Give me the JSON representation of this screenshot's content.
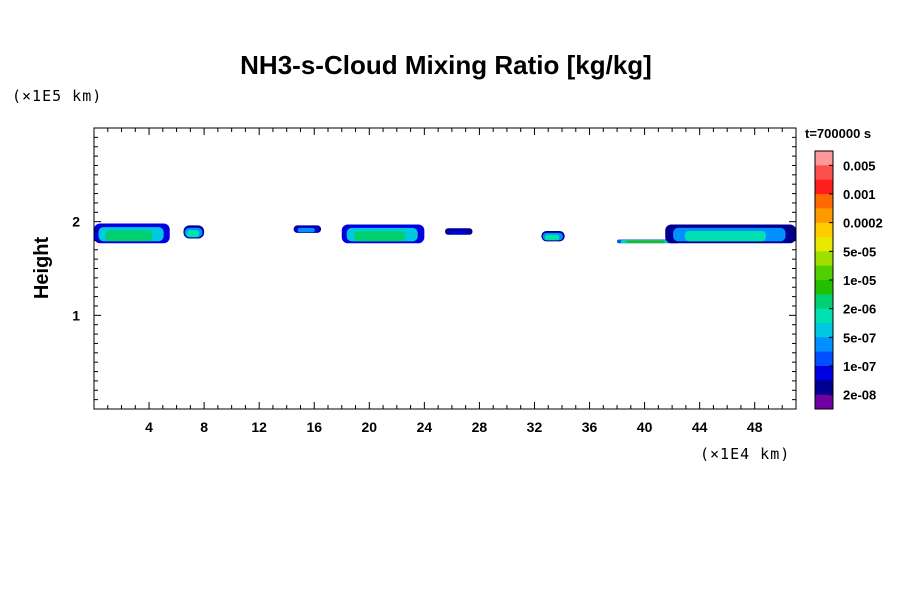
{
  "chart_data": {
    "type": "heatmap",
    "title": "NH3-s-Cloud Mixing Ratio [kg/kg]",
    "ylabel": "Height",
    "xlabel": "",
    "x_unit": "(×1E4 km)",
    "y_unit": "(×1E5 km)",
    "time_label": "t=700000 s",
    "xlim": [
      0,
      51
    ],
    "ylim": [
      0,
      3
    ],
    "x_ticks": [
      "4",
      "8",
      "12",
      "16",
      "20",
      "24",
      "28",
      "32",
      "36",
      "40",
      "44",
      "48"
    ],
    "x_tick_values": [
      4,
      8,
      12,
      16,
      20,
      24,
      28,
      32,
      36,
      40,
      44,
      48
    ],
    "y_ticks": [
      "1",
      "2"
    ],
    "y_tick_values": [
      1,
      2
    ],
    "colorbar": {
      "labels": [
        "0.005",
        "0.001",
        "0.0002",
        "5e-05",
        "1e-05",
        "2e-06",
        "5e-07",
        "1e-07",
        "2e-08"
      ],
      "colors": [
        "#ff9999",
        "#ff5050",
        "#ff1e1e",
        "#ff6a00",
        "#ff9900",
        "#ffcc00",
        "#e8e800",
        "#a0e000",
        "#50d000",
        "#20c000",
        "#00d070",
        "#00e0b0",
        "#00c8e0",
        "#0090ff",
        "#0050ff",
        "#0000e0",
        "#000090",
        "#7000a0"
      ]
    },
    "clouds": [
      {
        "x0": 0.0,
        "x1": 5.5,
        "y0": 1.77,
        "y1": 1.98,
        "level": 10
      },
      {
        "x0": 6.5,
        "x1": 8.0,
        "y0": 1.82,
        "y1": 1.96,
        "level": 11
      },
      {
        "x0": 14.5,
        "x1": 16.5,
        "y0": 1.88,
        "y1": 1.96,
        "level": 13
      },
      {
        "x0": 18.0,
        "x1": 24.0,
        "y0": 1.77,
        "y1": 1.97,
        "level": 10
      },
      {
        "x0": 25.5,
        "x1": 27.5,
        "y0": 1.86,
        "y1": 1.93,
        "level": 15
      },
      {
        "x0": 32.5,
        "x1": 34.2,
        "y0": 1.79,
        "y1": 1.9,
        "level": 11
      },
      {
        "x0": 38.0,
        "x1": 42.5,
        "y0": 1.77,
        "y1": 1.81,
        "level": 9
      },
      {
        "x0": 41.5,
        "x1": 51.0,
        "y0": 1.77,
        "y1": 1.97,
        "level": 11
      }
    ]
  }
}
